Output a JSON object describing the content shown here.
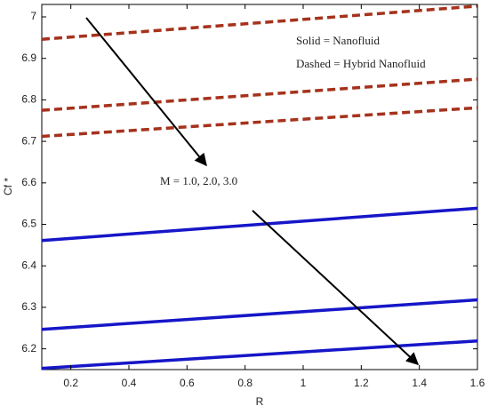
{
  "chart_data": {
    "type": "line",
    "x_label": "R",
    "y_label": "Cf *",
    "annotations": [
      "Solid   = Nanofluid",
      "Dashed = Hybrid Nanofluid",
      "M = 1.0, 2.0, 3.0"
    ],
    "x": [
      0.1,
      1.6
    ],
    "series": [
      {
        "color": "#a5321c",
        "style": "dashed",
        "values": [
          6.946,
          7.026
        ]
      },
      {
        "color": "#a5321c",
        "style": "dashed",
        "values": [
          6.775,
          6.85
        ]
      },
      {
        "color": "#a5321c",
        "style": "dashed",
        "values": [
          6.712,
          6.781
        ]
      },
      {
        "color": "#1616c8",
        "style": "solid",
        "values": [
          6.461,
          6.539
        ]
      },
      {
        "color": "#1616c8",
        "style": "solid",
        "values": [
          6.247,
          6.318
        ]
      },
      {
        "color": "#1616c8",
        "style": "solid",
        "values": [
          6.153,
          6.219
        ]
      }
    ],
    "xlim": [
      0.1,
      1.6
    ],
    "xticks": [
      0.2,
      0.4,
      0.6,
      0.8,
      1,
      1.2,
      1.4,
      1.6
    ],
    "ylim": [
      6.15,
      7.03
    ],
    "yticks": [
      6.2,
      6.3,
      6.4,
      6.5,
      6.6,
      6.7,
      6.8,
      6.9,
      7
    ],
    "grid": false
  }
}
